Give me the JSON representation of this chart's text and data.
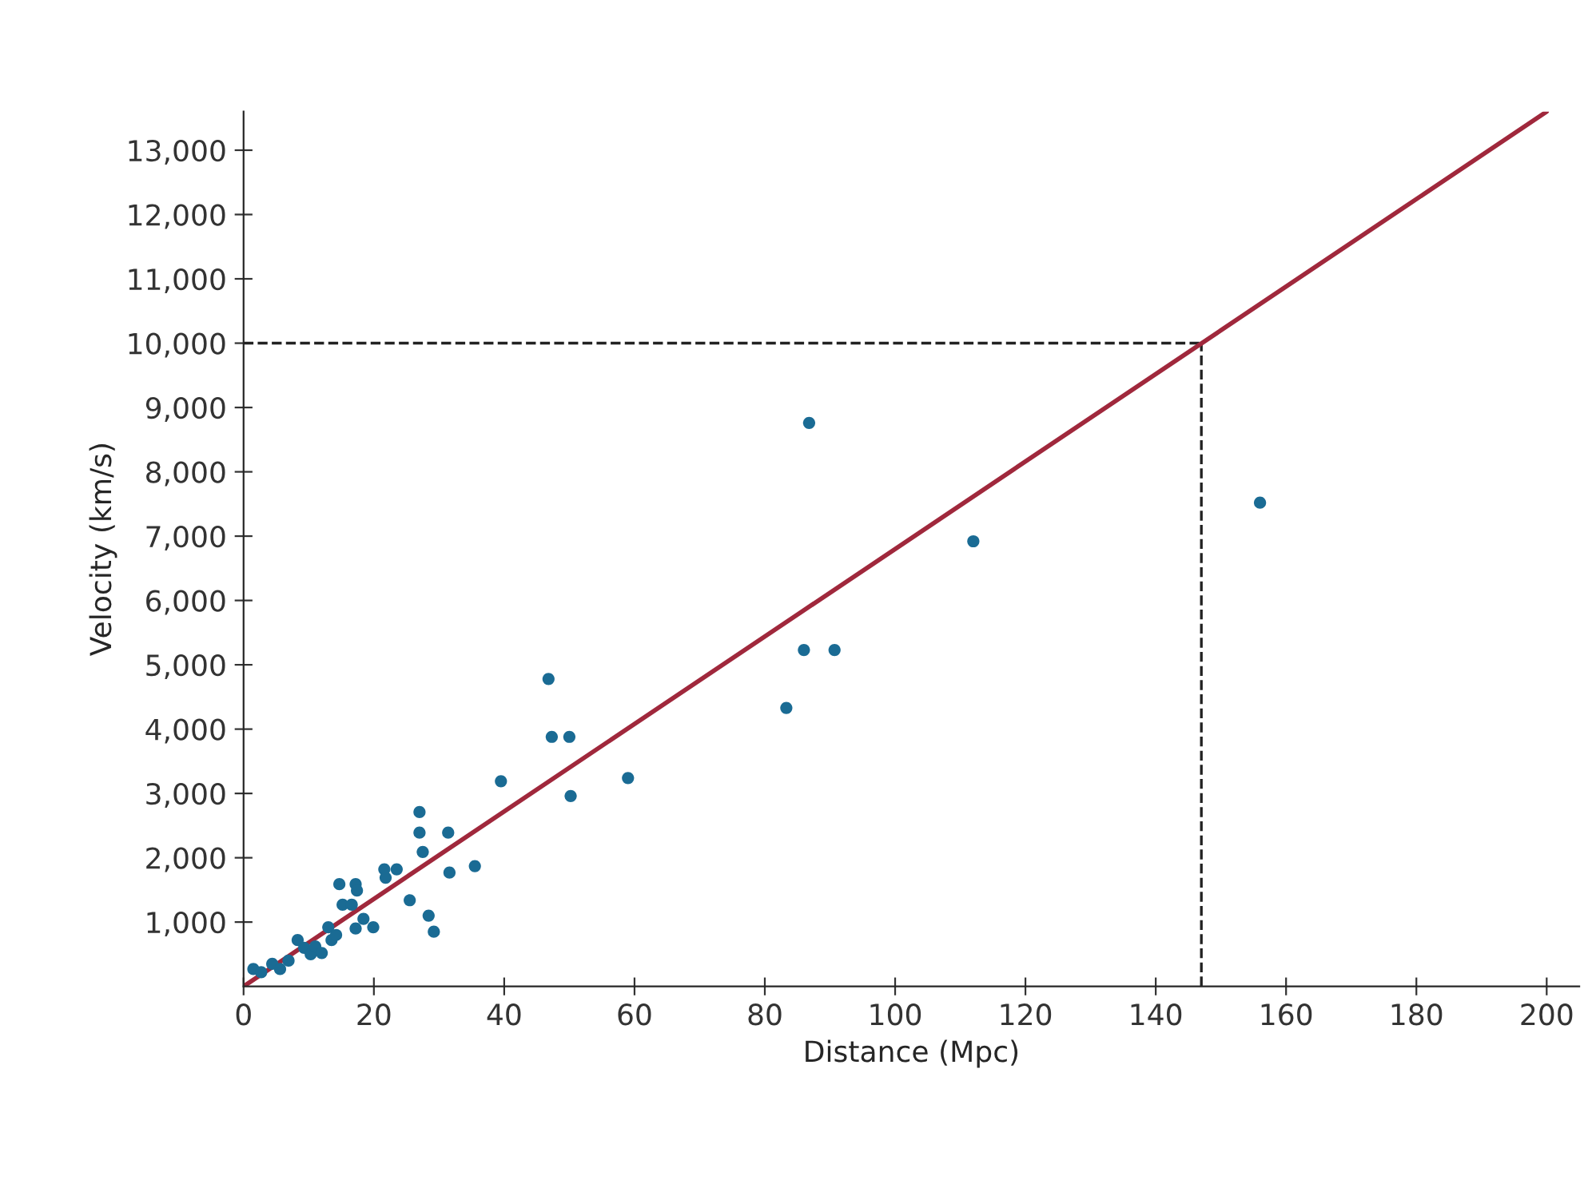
{
  "chart_data": {
    "type": "scatter",
    "xlabel": "Distance (Mpc)",
    "ylabel": "Velocity (km/s)",
    "xlim": [
      0,
      205
    ],
    "ylim": [
      0,
      13600
    ],
    "xticks": [
      0,
      20,
      40,
      60,
      80,
      100,
      120,
      140,
      160,
      180,
      200
    ],
    "yticks": [
      {
        "value": 1000,
        "label": "1,000"
      },
      {
        "value": 2000,
        "label": "2,000"
      },
      {
        "value": 3000,
        "label": "3,000"
      },
      {
        "value": 4000,
        "label": "4,000"
      },
      {
        "value": 5000,
        "label": "5,000"
      },
      {
        "value": 6000,
        "label": "6,000"
      },
      {
        "value": 7000,
        "label": "7,000"
      },
      {
        "value": 8000,
        "label": "8,000"
      },
      {
        "value": 9000,
        "label": "9,000"
      },
      {
        "value": 10000,
        "label": "10,000"
      },
      {
        "value": 11000,
        "label": "11,000"
      },
      {
        "value": 12000,
        "label": "12,000"
      },
      {
        "value": 13000,
        "label": "13,000"
      }
    ],
    "grid": false,
    "legend": false,
    "series": [
      {
        "marker": "circle",
        "color": "#1a6b94",
        "x": [
          1.5,
          2.7,
          4.4,
          5.6,
          6.9,
          8.3,
          9.3,
          10.3,
          11,
          12,
          13,
          13.5,
          14.2,
          14.7,
          15.2,
          16.6,
          17.2,
          17.4,
          17.2,
          18.4,
          19.9,
          21.6,
          21.8,
          23.5,
          25.5,
          27,
          27,
          27.5,
          28.4,
          29.2,
          31.4,
          31.6,
          35.5,
          39.5,
          46.8,
          47.3,
          50,
          50.2,
          59,
          83.3,
          86,
          86.8,
          90.7,
          112,
          156
        ],
        "values": [
          270,
          220,
          350,
          270,
          400,
          720,
          600,
          500,
          620,
          520,
          920,
          720,
          800,
          1590,
          1270,
          1270,
          1590,
          1490,
          900,
          1050,
          920,
          1820,
          1690,
          1820,
          1340,
          2710,
          2390,
          2090,
          1100,
          850,
          2390,
          1770,
          1870,
          3190,
          4780,
          3880,
          3880,
          2960,
          3240,
          4330,
          5230,
          8760,
          5230,
          6920,
          7520
        ]
      },
      {
        "type": "line",
        "marker": "none",
        "color": "#a0283c",
        "x": [
          0,
          200
        ],
        "values": [
          0,
          13600
        ]
      }
    ],
    "ref_lines": [
      {
        "axis": "y",
        "value": 10000,
        "color": "#222222",
        "line_style": "dashed"
      },
      {
        "axis": "x",
        "value": 147,
        "color": "#222222",
        "line_style": "dashed"
      }
    ]
  }
}
